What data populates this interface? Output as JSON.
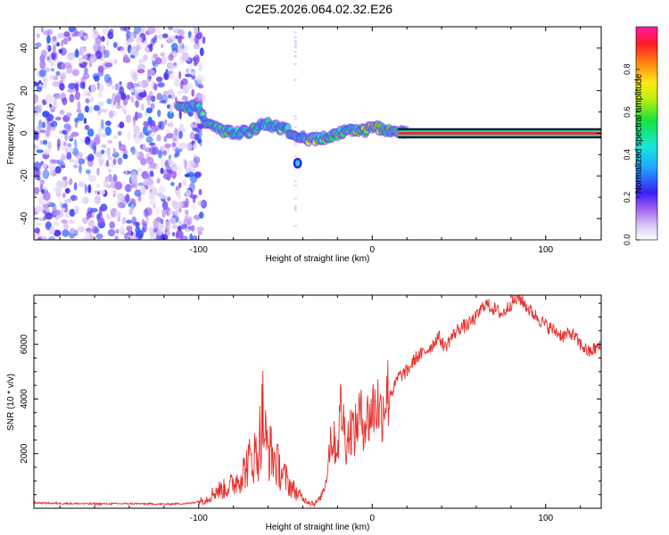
{
  "figure_title": "C2E5.2026.064.02.32.E26",
  "colors": {
    "snr_line": "#e8302c",
    "axis": "#000000",
    "track_band": "#ff1f3a"
  },
  "chart_data": [
    {
      "type": "heatmap",
      "title": "C2E5.2026.064.02.32.E26",
      "xlabel": "Height of straight line (km)",
      "ylabel": "Frequency (Hz)",
      "xlim": [
        -195,
        132
      ],
      "ylim": [
        -50,
        50
      ],
      "x_ticks": [
        -100,
        0,
        100
      ],
      "y_ticks": [
        -40,
        -20,
        0,
        20,
        40
      ],
      "colorbar": {
        "label": "Normalized spectral amplitude",
        "range": [
          0,
          1
        ],
        "ticks": [
          0.0,
          0.2,
          0.4,
          0.6,
          0.8
        ],
        "tick_labels": [
          "0.0",
          "0.2",
          "0.4",
          "0.6",
          "0.8"
        ]
      },
      "features": {
        "noise_region_km": [
          -195,
          -97
        ],
        "tone_track_km": [
          -97,
          132
        ],
        "tone_track_freq_hz": [
          [
            -110,
            13
          ],
          [
            -100,
            12
          ],
          [
            -96,
            5
          ],
          [
            -90,
            3
          ],
          [
            -85,
            1
          ],
          [
            -78,
            0
          ],
          [
            -70,
            1
          ],
          [
            -62,
            5
          ],
          [
            -55,
            3
          ],
          [
            -48,
            1
          ],
          [
            -40,
            -2
          ],
          [
            -34,
            -3
          ],
          [
            -25,
            -2
          ],
          [
            -15,
            1
          ],
          [
            -5,
            1
          ],
          [
            2,
            3
          ],
          [
            10,
            1
          ],
          [
            20,
            0
          ],
          [
            60,
            0
          ],
          [
            132,
            0
          ]
        ],
        "isolated_blob": {
          "x_km": -43,
          "freq_hz": -14
        }
      }
    },
    {
      "type": "line",
      "xlabel": "Height of straight line (km)",
      "ylabel": "SNR (10 * v/v)",
      "xlim": [
        -195,
        132
      ],
      "ylim": [
        0,
        7800
      ],
      "x_ticks": [
        -100,
        0,
        100
      ],
      "y_ticks": [
        2000,
        4000,
        6000
      ],
      "series": [
        {
          "name": "SNR",
          "x": [
            -195,
            -180,
            -160,
            -140,
            -120,
            -105,
            -100,
            -95,
            -90,
            -85,
            -80,
            -75,
            -70,
            -66,
            -63,
            -61,
            -58,
            -55,
            -52,
            -48,
            -44,
            -40,
            -37,
            -33,
            -30,
            -27,
            -24,
            -20,
            -18,
            -15,
            -12,
            -10,
            -8,
            -5,
            -2,
            0,
            3,
            5,
            8,
            12,
            15,
            20,
            25,
            30,
            35,
            38,
            42,
            45,
            50,
            55,
            60,
            65,
            70,
            75,
            80,
            85,
            90,
            95,
            100,
            105,
            110,
            115,
            120,
            125,
            130
          ],
          "y": [
            200,
            180,
            160,
            170,
            150,
            180,
            250,
            350,
            650,
            700,
            900,
            1250,
            1800,
            2000,
            3500,
            2200,
            2000,
            1600,
            1300,
            900,
            600,
            350,
            250,
            180,
            350,
            900,
            2600,
            2200,
            3800,
            2400,
            3000,
            2700,
            3400,
            3200,
            3300,
            3600,
            3900,
            3400,
            4200,
            4300,
            4800,
            5000,
            5500,
            5700,
            6000,
            6300,
            5900,
            6200,
            6600,
            6700,
            7000,
            7500,
            7300,
            7100,
            7500,
            7700,
            7300,
            7000,
            6700,
            6500,
            6300,
            6400,
            6000,
            5700,
            5900
          ]
        }
      ]
    }
  ]
}
